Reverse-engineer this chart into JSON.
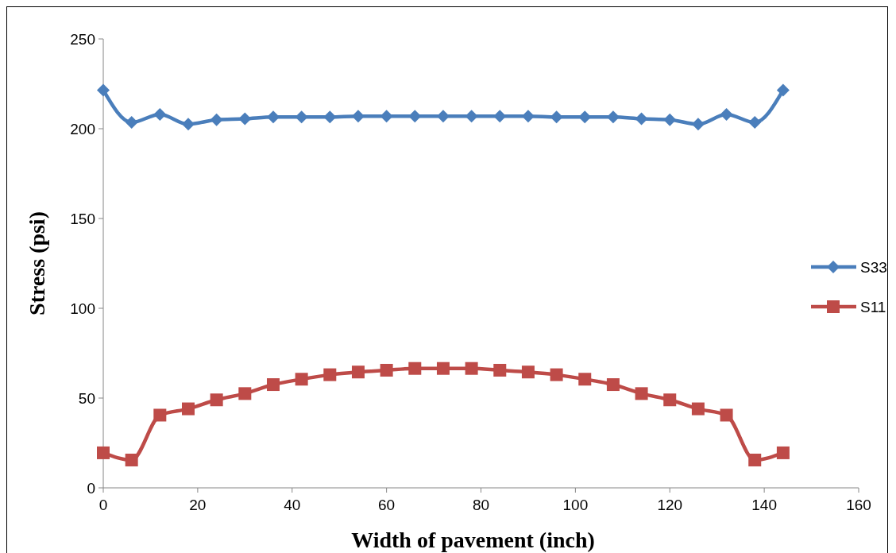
{
  "chart_data": {
    "type": "line",
    "xlabel": "Width of pavement (inch)",
    "ylabel": "Stress (psi)",
    "x": [
      0,
      6,
      12,
      18,
      24,
      30,
      36,
      42,
      48,
      54,
      60,
      66,
      72,
      78,
      84,
      90,
      96,
      102,
      108,
      114,
      120,
      126,
      132,
      138,
      144
    ],
    "series": [
      {
        "name": "S33",
        "color": "#4a7ebb",
        "marker": "diamond",
        "values": [
          221.5,
          203.5,
          208,
          202.5,
          205,
          205.5,
          206.5,
          206.5,
          206.5,
          207,
          207,
          207,
          207,
          207,
          207,
          207,
          206.5,
          206.5,
          206.5,
          205.5,
          205,
          202.5,
          208,
          203.5,
          221.5
        ]
      },
      {
        "name": "S11",
        "color": "#be4b48",
        "marker": "square",
        "values": [
          19.5,
          15.5,
          40.5,
          44,
          49,
          52.5,
          57.5,
          60.5,
          63,
          64.5,
          65.5,
          66.5,
          66.5,
          66.5,
          65.5,
          64.5,
          63,
          60.5,
          57.5,
          52.5,
          49,
          44,
          40.5,
          15.5,
          19.5
        ]
      }
    ],
    "xlim": [
      0,
      160
    ],
    "xticks": [
      0,
      20,
      40,
      60,
      80,
      100,
      120,
      140,
      160
    ],
    "ylim": [
      0,
      250
    ],
    "yticks": [
      0,
      50,
      100,
      150,
      200,
      250
    ],
    "grid": false,
    "legend": "right",
    "line_style": "solid"
  }
}
